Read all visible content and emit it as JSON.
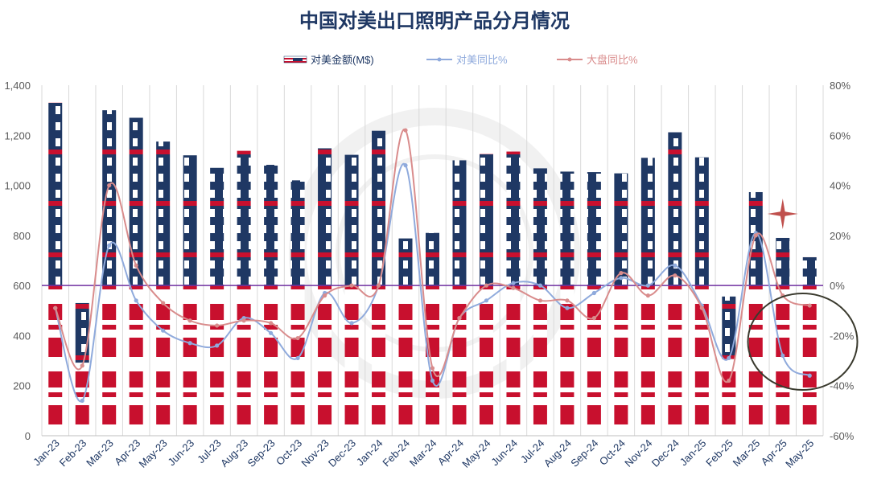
{
  "chart_data": {
    "type": "bar",
    "title": "中国对美出口照明产品分月情况",
    "categories": [
      "Jan-23",
      "Feb-23",
      "Mar-23",
      "Apr-23",
      "May-23",
      "Jun-23",
      "Jul-23",
      "Aug-23",
      "Sep-23",
      "Oct-23",
      "Nov-23",
      "Dec-23",
      "Jan-24",
      "Feb-24",
      "Mar-24",
      "Apr-24",
      "May-24",
      "Jun-24",
      "Jul-24",
      "Aug-24",
      "Sep-24",
      "Oct-24",
      "Nov-24",
      "Dec-24",
      "Jan-25",
      "Feb-25",
      "Mar-25",
      "Apr-25",
      "May-25"
    ],
    "series": [
      {
        "name": "对美金额(M$)",
        "type": "bar",
        "axis": "left",
        "values": [
          1330,
          530,
          1300,
          1270,
          1175,
          1120,
          1070,
          1138,
          1082,
          1020,
          1148,
          1122,
          1218,
          788,
          810,
          1100,
          1125,
          1135,
          1068,
          1055,
          1053,
          1048,
          1110,
          1212,
          1112,
          556,
          973,
          790,
          713
        ]
      },
      {
        "name": "对美同比%",
        "type": "line",
        "axis": "right",
        "color": "#8FAADC",
        "values": [
          -9,
          -46,
          16,
          -6,
          -18,
          -23,
          -24,
          -13,
          -19,
          -29,
          -3,
          -15,
          0,
          48,
          -38,
          -13,
          -6,
          1,
          0,
          -9,
          -3,
          3,
          0,
          8,
          -8,
          -29,
          21,
          -28,
          -36
        ]
      },
      {
        "name": "大盘同比%",
        "type": "line",
        "axis": "right",
        "color": "#D98C8C",
        "values": [
          -9,
          -32,
          40,
          8,
          -7,
          -14,
          -16,
          -14,
          -15,
          -21,
          -4,
          0,
          0,
          62,
          -33,
          -13,
          0,
          -1,
          -6,
          -6,
          -13,
          5,
          -4,
          4,
          -9,
          -38,
          20,
          -4,
          -8
        ]
      }
    ],
    "y_left": {
      "min": 0,
      "max": 1400,
      "ticks": [
        "0",
        "200",
        "400",
        "600",
        "800",
        "1,000",
        "1,200",
        "1,400"
      ]
    },
    "y_right": {
      "min": -60,
      "max": 80,
      "ticks": [
        "-60%",
        "-40%",
        "-20%",
        "0%",
        "20%",
        "40%",
        "60%",
        "80%"
      ]
    },
    "reference_line": {
      "axis": "right",
      "value": 0,
      "color": "#7030A0"
    },
    "legend_position": "top-center",
    "grid": "vertical",
    "annotations": [
      {
        "type": "star",
        "near": "Apr-25",
        "color": "#C0504D"
      },
      {
        "type": "circle",
        "around": [
          "Apr-25",
          "May-25"
        ],
        "color": "#3A3A2E"
      }
    ]
  },
  "colors": {
    "navy": "#1F3864",
    "red": "#C8102E",
    "title": "#1F3864",
    "axis_text": "#595959"
  }
}
